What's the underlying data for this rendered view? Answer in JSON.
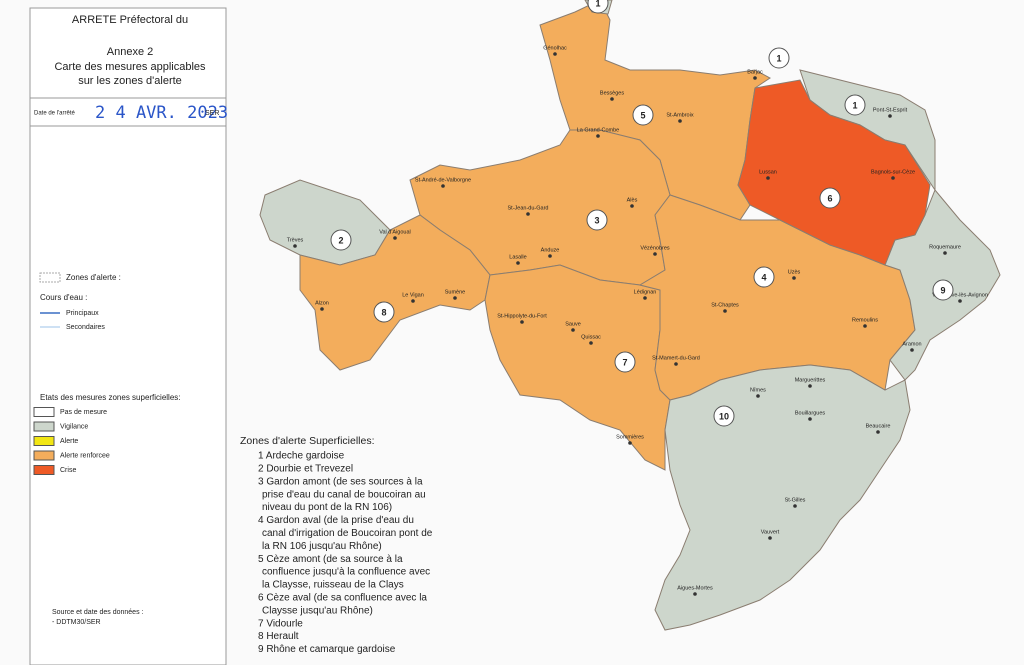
{
  "header": {
    "title": "ARRETE Préfectoral du",
    "annex": "Annexe 2",
    "subtitle_line1": "Carte des mesures applicables",
    "subtitle_line2": "sur les zones d'alerte",
    "date_label": "Date de l'arrêté",
    "date": "2 4 AVR. 2023",
    "stamp": "SER"
  },
  "legend": {
    "zones_title": "Zones d'alerte :",
    "water_title": "Cours d'eau :",
    "water_items": [
      {
        "label": "Principaux",
        "color": "#3a6fc4"
      },
      {
        "label": "Secondaires",
        "color": "#9cc3e8"
      }
    ],
    "states_title": "Etats des mesures zones superficielles:",
    "states": [
      {
        "label": "Pas de mesure",
        "color": "#ffffff"
      },
      {
        "label": "Vigilance",
        "color": "#cdd6cc"
      },
      {
        "label": "Alerte",
        "color": "#f2e614"
      },
      {
        "label": "Alerte renforcee",
        "color": "#f3ad5c"
      },
      {
        "label": "Crise",
        "color": "#ee5a26"
      }
    ]
  },
  "source": {
    "title": "Source et date des données :",
    "value": "- DDTM30/SER"
  },
  "zones_list": {
    "title": "Zones d'alerte Superficielles:",
    "lines": [
      "1 Ardeche gardoise",
      "2 Dourbie et Trevezel",
      "3 Gardon amont (de ses sources à la",
      "prise d'eau du canal de boucoiran au",
      "niveau du pont de la RN 106)",
      "4 Gardon aval (de la prise d'eau du",
      "canal d'irrigation de Boucoiran pont de",
      "la RN 106 jusqu'au Rhône)",
      "5 Cèze amont (de sa source à la",
      "confluence jusqu'à la confluence avec",
      "la Claysse, ruisseau de la Clays",
      "6 Cèze aval (de sa confluence avec la",
      "Claysse jusqu'au Rhône)",
      "7 Vidourle",
      "8 Herault",
      "9 Rhône et camarque gardoise"
    ]
  },
  "map": {
    "zone_labels": [
      "1",
      "1",
      "1",
      "2",
      "3",
      "4",
      "5",
      "6",
      "7",
      "8",
      "9",
      "10"
    ],
    "towns": [
      "Génolhac",
      "Bessèges",
      "St-Ambroix",
      "La Grand-Combe",
      "Barjac",
      "Pont-St-Esprit",
      "Lussan",
      "Bagnols-sur-Cèze",
      "St-André-de-Valborgne",
      "St-Jean-du-Gard",
      "Alès",
      "Trèves",
      "Val d'Aigoual",
      "Anduze",
      "Vézénobres",
      "Lasalle",
      "Le Vigan",
      "Sumène",
      "Alzon",
      "St-Hippolyte-du-Fort",
      "Lédignan",
      "Sauve",
      "Quissac",
      "Uzès",
      "St-Chaptes",
      "Remoulins",
      "Roquemaure",
      "Villeneuve-lès-Avignon",
      "Aramon",
      "St-Mamert-du-Gard",
      "Sommières",
      "Nîmes",
      "Marguerittes",
      "Bouillargues",
      "Beaucaire",
      "St-Gilles",
      "Vauvert",
      "Aigues-Mortes"
    ]
  }
}
